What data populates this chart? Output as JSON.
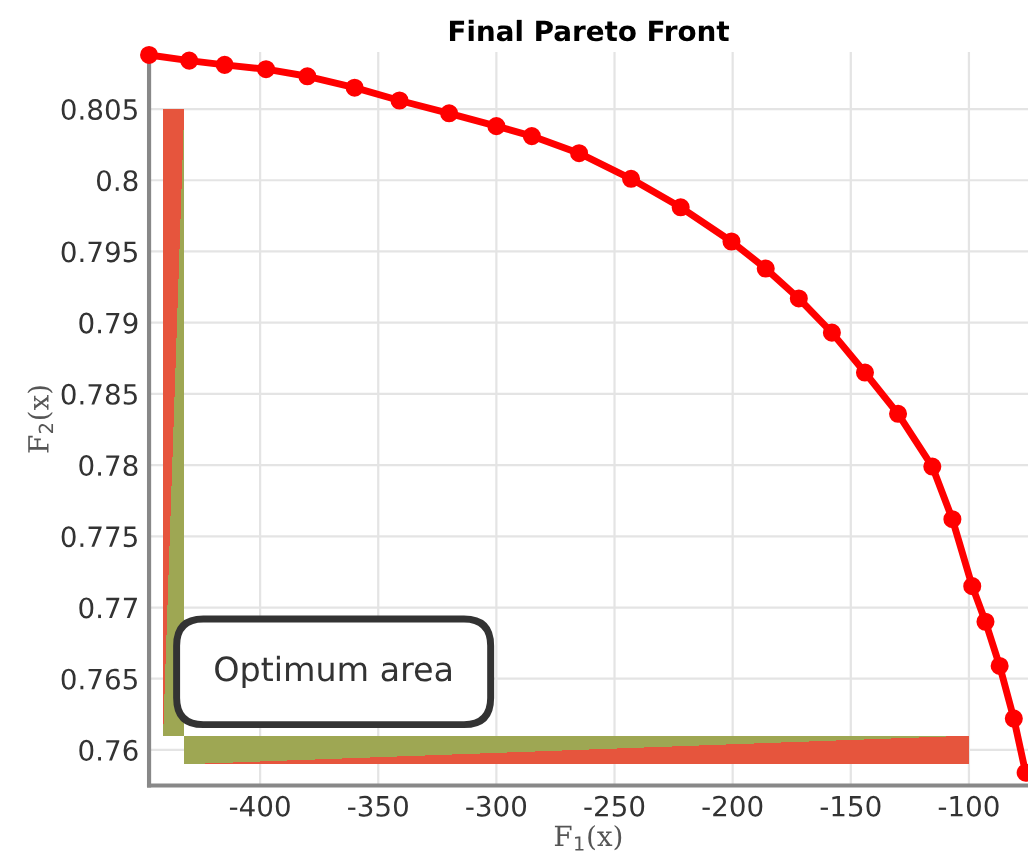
{
  "chart_data": {
    "type": "line",
    "title": "Final Pareto Front",
    "xlabel": "F$_{1}$(x)",
    "ylabel": "F$_{2}$(x)",
    "x": [
      -447,
      -430,
      -415,
      -397.5,
      -380,
      -360,
      -341,
      -320,
      -300,
      -285,
      -265,
      -243,
      -222,
      -200.5,
      -186,
      -172,
      -158,
      -144,
      -130,
      -115.5,
      -107,
      -98.6,
      -93,
      -87,
      -81,
      -76
    ],
    "series": [
      {
        "color": "#ff0000",
        "values": [
          0.8088,
          0.8084,
          0.8081,
          0.8078,
          0.8073,
          0.8065,
          0.8056,
          0.8047,
          0.8038,
          0.8031,
          0.8019,
          0.8001,
          0.7981,
          0.7957,
          0.7938,
          0.7917,
          0.7893,
          0.7865,
          0.7836,
          0.7799,
          0.7762,
          0.7715,
          0.769,
          0.7659,
          0.7622,
          0.7584
        ]
      }
    ],
    "marker": "circle",
    "line_style": "solid",
    "xlim": [
      -447,
      -75
    ],
    "ylim": [
      0.7575,
      0.809
    ],
    "xticks": [
      -400,
      -350,
      -300,
      -250,
      -200,
      -150,
      -100
    ],
    "yticks": [
      0.76,
      0.765,
      0.77,
      0.775,
      0.78,
      0.785,
      0.79,
      0.795,
      0.8,
      0.805
    ],
    "grid": true,
    "annotations": [
      "Optimum area"
    ]
  }
}
